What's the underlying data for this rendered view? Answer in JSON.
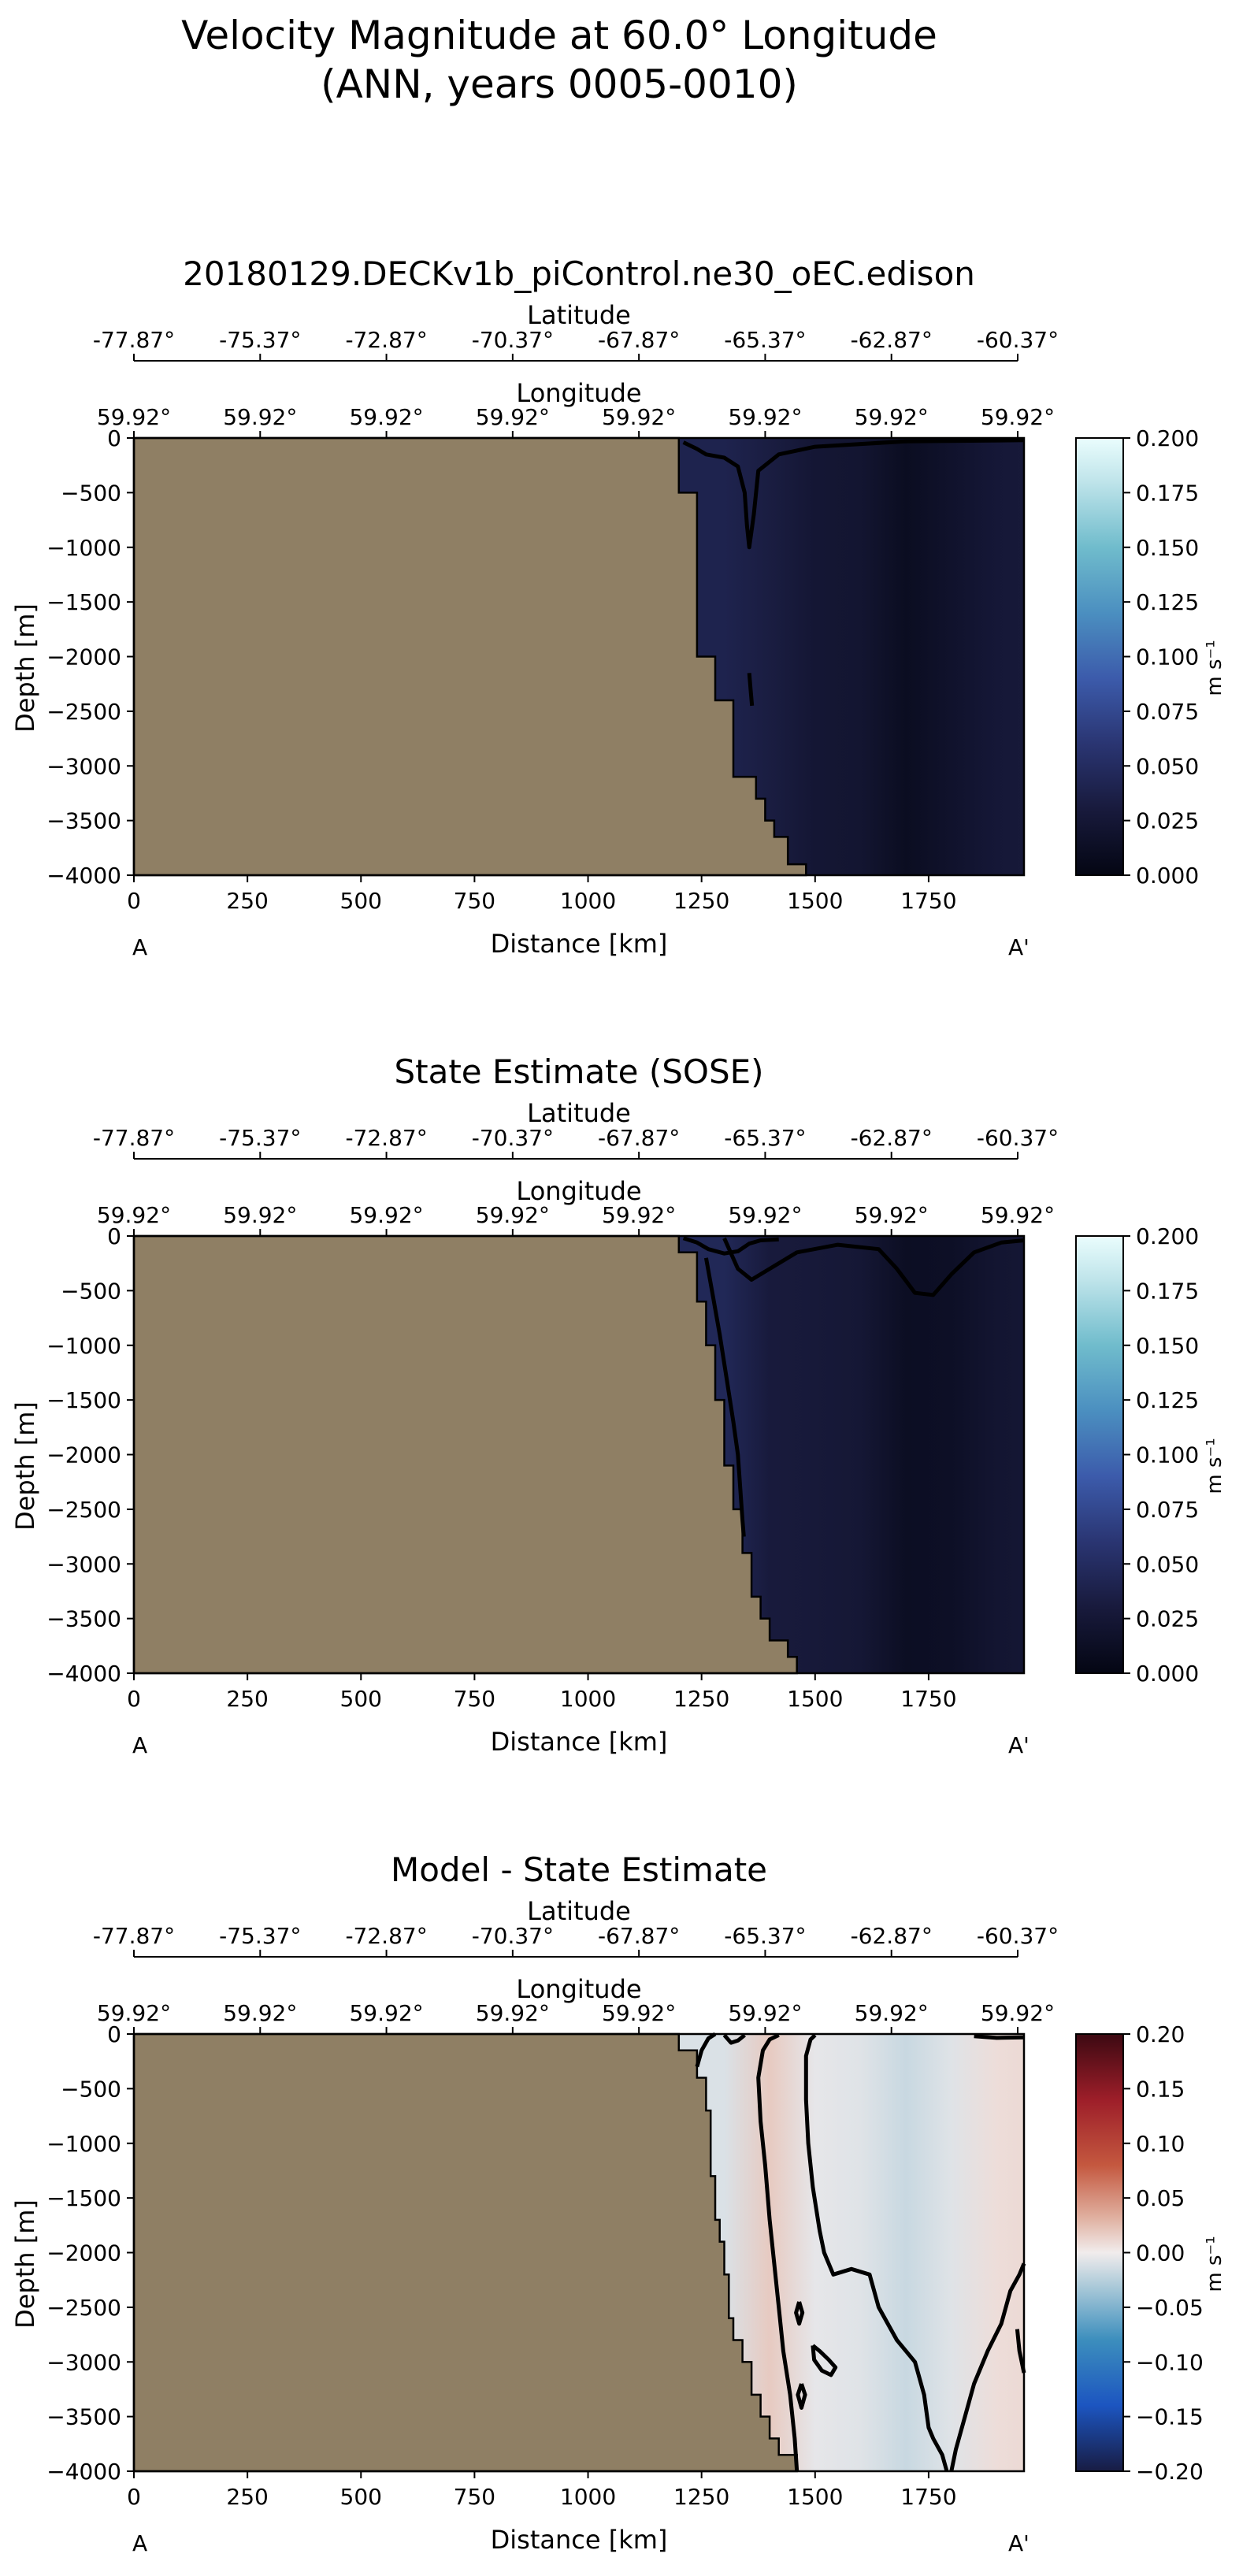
{
  "figure": {
    "suptitle_line1": "Velocity Magnitude at 60.0° Longitude",
    "suptitle_line2": "(ANN, years 0005-0010)"
  },
  "colors": {
    "land": "#8f7f64",
    "axis": "#000000",
    "contour": "#000000"
  },
  "chart_data": [
    {
      "type": "heatmap",
      "title": "20180129.DECKv1b_piControl.ne30_oEC.edison",
      "xlabel": "Distance [km]",
      "ylabel": "Depth [m]",
      "xlim": [
        0,
        1960
      ],
      "ylim": [
        -4000,
        0
      ],
      "xticks": [
        0,
        250,
        500,
        750,
        1000,
        1250,
        1500,
        1750
      ],
      "yticks": [
        0,
        -500,
        -1000,
        -1500,
        -2000,
        -2500,
        -3000,
        -3500,
        -4000
      ],
      "top_axis_1": {
        "label": "Latitude",
        "ticks": [
          "-77.87°",
          "-75.37°",
          "-72.87°",
          "-70.37°",
          "-67.87°",
          "-65.37°",
          "-62.87°",
          "-60.37°"
        ]
      },
      "top_axis_2": {
        "label": "Longitude",
        "ticks": [
          "59.92°",
          "59.92°",
          "59.92°",
          "59.92°",
          "59.92°",
          "59.92°",
          "59.92°",
          "59.92°"
        ]
      },
      "section_ends": [
        "A",
        "A'"
      ],
      "colorbar": {
        "label": "m s⁻¹",
        "min": 0.0,
        "max": 0.2,
        "ticks": [
          "0.000",
          "0.025",
          "0.050",
          "0.075",
          "0.100",
          "0.125",
          "0.150",
          "0.175",
          "0.200"
        ],
        "colormap": "ice"
      },
      "bathymetry": [
        [
          1200,
          0
        ],
        [
          1200,
          -500
        ],
        [
          1240,
          -500
        ],
        [
          1240,
          -2000
        ],
        [
          1280,
          -2000
        ],
        [
          1280,
          -2400
        ],
        [
          1320,
          -2400
        ],
        [
          1320,
          -3100
        ],
        [
          1370,
          -3100
        ],
        [
          1370,
          -3300
        ],
        [
          1390,
          -3300
        ],
        [
          1390,
          -3500
        ],
        [
          1410,
          -3500
        ],
        [
          1410,
          -3650
        ],
        [
          1440,
          -3650
        ],
        [
          1440,
          -3900
        ],
        [
          1480,
          -3900
        ],
        [
          1480,
          -4000
        ]
      ],
      "field_columns": [
        {
          "x": 1200,
          "value": 0.04
        },
        {
          "x": 1300,
          "value": 0.04
        },
        {
          "x": 1400,
          "value": 0.033
        },
        {
          "x": 1500,
          "value": 0.024
        },
        {
          "x": 1600,
          "value": 0.022
        },
        {
          "x": 1700,
          "value": 0.01
        },
        {
          "x": 1800,
          "value": 0.018
        },
        {
          "x": 1900,
          "value": 0.026
        },
        {
          "x": 1960,
          "value": 0.028
        }
      ],
      "contours": [
        [
          [
            1210,
            -40
          ],
          [
            1240,
            -100
          ],
          [
            1260,
            -150
          ],
          [
            1300,
            -180
          ],
          [
            1330,
            -260
          ],
          [
            1345,
            -500
          ],
          [
            1350,
            -800
          ],
          [
            1355,
            -1000
          ],
          [
            1365,
            -700
          ],
          [
            1375,
            -300
          ],
          [
            1420,
            -150
          ],
          [
            1500,
            -80
          ],
          [
            1700,
            -30
          ],
          [
            1960,
            -20
          ]
        ],
        [
          [
            1355,
            -2150
          ],
          [
            1358,
            -2300
          ],
          [
            1361,
            -2450
          ]
        ]
      ]
    },
    {
      "type": "heatmap",
      "title": "State Estimate (SOSE)",
      "xlabel": "Distance [km]",
      "ylabel": "Depth [m]",
      "xlim": [
        0,
        1960
      ],
      "ylim": [
        -4000,
        0
      ],
      "xticks": [
        0,
        250,
        500,
        750,
        1000,
        1250,
        1500,
        1750
      ],
      "yticks": [
        0,
        -500,
        -1000,
        -1500,
        -2000,
        -2500,
        -3000,
        -3500,
        -4000
      ],
      "top_axis_1": {
        "label": "Latitude",
        "ticks": [
          "-77.87°",
          "-75.37°",
          "-72.87°",
          "-70.37°",
          "-67.87°",
          "-65.37°",
          "-62.87°",
          "-60.37°"
        ]
      },
      "top_axis_2": {
        "label": "Longitude",
        "ticks": [
          "59.92°",
          "59.92°",
          "59.92°",
          "59.92°",
          "59.92°",
          "59.92°",
          "59.92°",
          "59.92°"
        ]
      },
      "section_ends": [
        "A",
        "A'"
      ],
      "colorbar": {
        "label": "m s⁻¹",
        "min": 0.0,
        "max": 0.2,
        "ticks": [
          "0.000",
          "0.025",
          "0.050",
          "0.075",
          "0.100",
          "0.125",
          "0.150",
          "0.175",
          "0.200"
        ],
        "colormap": "ice"
      },
      "bathymetry": [
        [
          1200,
          0
        ],
        [
          1200,
          -150
        ],
        [
          1240,
          -150
        ],
        [
          1240,
          -600
        ],
        [
          1260,
          -600
        ],
        [
          1260,
          -1000
        ],
        [
          1280,
          -1000
        ],
        [
          1280,
          -1500
        ],
        [
          1300,
          -1500
        ],
        [
          1300,
          -2100
        ],
        [
          1320,
          -2100
        ],
        [
          1320,
          -2500
        ],
        [
          1340,
          -2500
        ],
        [
          1340,
          -2900
        ],
        [
          1360,
          -2900
        ],
        [
          1360,
          -3300
        ],
        [
          1380,
          -3300
        ],
        [
          1380,
          -3500
        ],
        [
          1400,
          -3500
        ],
        [
          1400,
          -3700
        ],
        [
          1440,
          -3700
        ],
        [
          1440,
          -3850
        ],
        [
          1460,
          -3850
        ],
        [
          1460,
          -4000
        ]
      ],
      "field_columns": [
        {
          "x": 1200,
          "value": 0.045
        },
        {
          "x": 1300,
          "value": 0.045
        },
        {
          "x": 1400,
          "value": 0.03
        },
        {
          "x": 1500,
          "value": 0.028
        },
        {
          "x": 1600,
          "value": 0.025
        },
        {
          "x": 1700,
          "value": 0.012
        },
        {
          "x": 1800,
          "value": 0.014
        },
        {
          "x": 1900,
          "value": 0.022
        },
        {
          "x": 1960,
          "value": 0.024
        }
      ],
      "contours": [
        [
          [
            1210,
            -20
          ],
          [
            1240,
            -60
          ],
          [
            1265,
            -120
          ],
          [
            1300,
            -160
          ],
          [
            1330,
            -140
          ],
          [
            1355,
            -70
          ],
          [
            1380,
            -40
          ],
          [
            1420,
            -30
          ]
        ],
        [
          [
            1260,
            -200
          ],
          [
            1275,
            -550
          ],
          [
            1290,
            -900
          ],
          [
            1305,
            -1300
          ],
          [
            1320,
            -1700
          ],
          [
            1330,
            -2000
          ],
          [
            1335,
            -2300
          ],
          [
            1340,
            -2600
          ],
          [
            1343,
            -2750
          ]
        ],
        [
          [
            1300,
            -20
          ],
          [
            1330,
            -300
          ],
          [
            1360,
            -400
          ],
          [
            1400,
            -300
          ],
          [
            1460,
            -150
          ],
          [
            1550,
            -80
          ],
          [
            1640,
            -120
          ],
          [
            1680,
            -300
          ],
          [
            1720,
            -520
          ],
          [
            1760,
            -540
          ],
          [
            1800,
            -350
          ],
          [
            1850,
            -150
          ],
          [
            1910,
            -60
          ],
          [
            1960,
            -40
          ]
        ]
      ]
    },
    {
      "type": "heatmap",
      "title": "Model - State Estimate",
      "xlabel": "Distance [km]",
      "ylabel": "Depth [m]",
      "xlim": [
        0,
        1960
      ],
      "ylim": [
        -4000,
        0
      ],
      "xticks": [
        0,
        250,
        500,
        750,
        1000,
        1250,
        1500,
        1750
      ],
      "yticks": [
        0,
        -500,
        -1000,
        -1500,
        -2000,
        -2500,
        -3000,
        -3500,
        -4000
      ],
      "top_axis_1": {
        "label": "Latitude",
        "ticks": [
          "-77.87°",
          "-75.37°",
          "-72.87°",
          "-70.37°",
          "-67.87°",
          "-65.37°",
          "-62.87°",
          "-60.37°"
        ]
      },
      "top_axis_2": {
        "label": "Longitude",
        "ticks": [
          "59.92°",
          "59.92°",
          "59.92°",
          "59.92°",
          "59.92°",
          "59.92°",
          "59.92°",
          "59.92°"
        ]
      },
      "section_ends": [
        "A",
        "A'"
      ],
      "colorbar": {
        "label": "m s⁻¹",
        "min": -0.2,
        "max": 0.2,
        "ticks": [
          "−0.20",
          "−0.15",
          "−0.10",
          "−0.05",
          "0.00",
          "0.05",
          "0.10",
          "0.15",
          "0.20"
        ],
        "colormap": "balance"
      },
      "bathymetry": [
        [
          1200,
          0
        ],
        [
          1200,
          -150
        ],
        [
          1240,
          -150
        ],
        [
          1240,
          -400
        ],
        [
          1260,
          -400
        ],
        [
          1260,
          -700
        ],
        [
          1270,
          -700
        ],
        [
          1270,
          -1300
        ],
        [
          1280,
          -1300
        ],
        [
          1280,
          -1700
        ],
        [
          1290,
          -1700
        ],
        [
          1290,
          -1900
        ],
        [
          1300,
          -1900
        ],
        [
          1300,
          -2200
        ],
        [
          1310,
          -2200
        ],
        [
          1310,
          -2600
        ],
        [
          1320,
          -2600
        ],
        [
          1320,
          -2800
        ],
        [
          1340,
          -2800
        ],
        [
          1340,
          -3000
        ],
        [
          1360,
          -3000
        ],
        [
          1360,
          -3300
        ],
        [
          1380,
          -3300
        ],
        [
          1380,
          -3500
        ],
        [
          1400,
          -3500
        ],
        [
          1400,
          -3700
        ],
        [
          1420,
          -3700
        ],
        [
          1420,
          -3850
        ],
        [
          1460,
          -3850
        ],
        [
          1460,
          -4000
        ]
      ],
      "field_columns": [
        {
          "x": 1200,
          "value": -0.01
        },
        {
          "x": 1300,
          "value": -0.01
        },
        {
          "x": 1400,
          "value": 0.018
        },
        {
          "x": 1500,
          "value": -0.005
        },
        {
          "x": 1600,
          "value": -0.008
        },
        {
          "x": 1700,
          "value": -0.018
        },
        {
          "x": 1800,
          "value": -0.008
        },
        {
          "x": 1900,
          "value": 0.008
        },
        {
          "x": 1960,
          "value": 0.01
        }
      ],
      "contours": [
        [
          [
            1240,
            -300
          ],
          [
            1250,
            -150
          ],
          [
            1265,
            -40
          ],
          [
            1280,
            0
          ]
        ],
        [
          [
            1300,
            -10
          ],
          [
            1315,
            -80
          ],
          [
            1330,
            -60
          ],
          [
            1345,
            -10
          ]
        ],
        [
          [
            1460,
            -4000
          ],
          [
            1455,
            -3700
          ],
          [
            1445,
            -3300
          ],
          [
            1430,
            -2900
          ],
          [
            1420,
            -2500
          ],
          [
            1410,
            -2100
          ],
          [
            1400,
            -1700
          ],
          [
            1390,
            -1200
          ],
          [
            1380,
            -800
          ],
          [
            1375,
            -400
          ],
          [
            1385,
            -150
          ],
          [
            1400,
            -50
          ],
          [
            1420,
            -10
          ]
        ],
        [
          [
            1500,
            -10
          ],
          [
            1490,
            -50
          ],
          [
            1480,
            -200
          ],
          [
            1480,
            -600
          ],
          [
            1485,
            -1000
          ],
          [
            1495,
            -1400
          ],
          [
            1510,
            -1800
          ],
          [
            1520,
            -2000
          ],
          [
            1540,
            -2200
          ],
          [
            1580,
            -2150
          ],
          [
            1620,
            -2200
          ],
          [
            1640,
            -2500
          ],
          [
            1680,
            -2800
          ],
          [
            1720,
            -3000
          ],
          [
            1740,
            -3300
          ],
          [
            1750,
            -3600
          ],
          [
            1760,
            -3700
          ],
          [
            1780,
            -3850
          ],
          [
            1790,
            -4000
          ]
        ],
        [
          [
            1800,
            -4000
          ],
          [
            1810,
            -3800
          ],
          [
            1830,
            -3500
          ],
          [
            1850,
            -3200
          ],
          [
            1880,
            -2900
          ],
          [
            1910,
            -2650
          ],
          [
            1930,
            -2350
          ],
          [
            1950,
            -2200
          ],
          [
            1960,
            -2100
          ]
        ],
        [
          [
            1960,
            -3100
          ],
          [
            1950,
            -2900
          ],
          [
            1945,
            -2700
          ]
        ],
        [
          [
            1850,
            -20
          ],
          [
            1900,
            -35
          ],
          [
            1960,
            -30
          ]
        ],
        [
          [
            1465,
            -2450
          ],
          [
            1472,
            -2550
          ],
          [
            1465,
            -2650
          ],
          [
            1458,
            -2550
          ],
          [
            1465,
            -2450
          ]
        ],
        [
          [
            1470,
            -3200
          ],
          [
            1478,
            -3300
          ],
          [
            1470,
            -3420
          ],
          [
            1462,
            -3300
          ],
          [
            1470,
            -3200
          ]
        ],
        [
          [
            1495,
            -2850
          ],
          [
            1510,
            -2900
          ],
          [
            1530,
            -2980
          ],
          [
            1545,
            -3050
          ],
          [
            1535,
            -3120
          ],
          [
            1515,
            -3080
          ],
          [
            1498,
            -2980
          ],
          [
            1495,
            -2850
          ]
        ]
      ]
    }
  ]
}
